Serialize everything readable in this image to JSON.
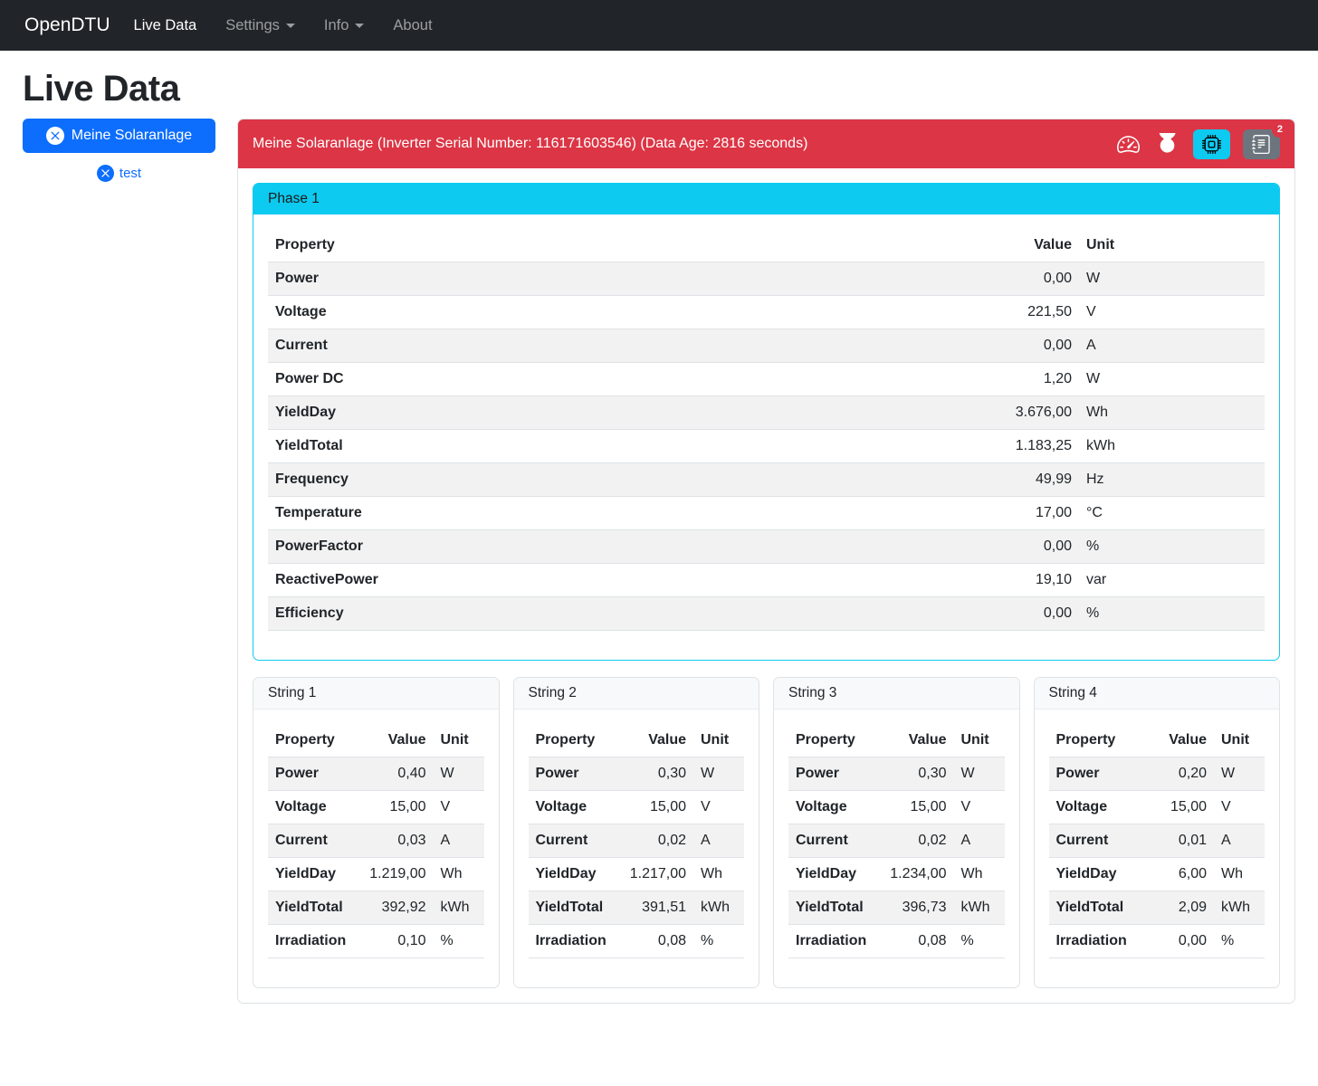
{
  "navbar": {
    "brand": "OpenDTU",
    "items": [
      {
        "label": "Live Data",
        "active": true,
        "dropdown": false
      },
      {
        "label": "Settings",
        "active": false,
        "dropdown": true
      },
      {
        "label": "Info",
        "active": false,
        "dropdown": true
      },
      {
        "label": "About",
        "active": false,
        "dropdown": false
      }
    ]
  },
  "page": {
    "title": "Live Data"
  },
  "sidebar": {
    "inverter_button_label": "Meine Solaranlage",
    "test_link_label": "test"
  },
  "inverter": {
    "header": "Meine Solaranlage (Inverter Serial Number: 116171603546) (Data Age: 2816 seconds)",
    "event_count_badge": "2",
    "icons": {
      "speedometer": "limit-settings gauge icon",
      "power": "power on/off icon",
      "cpu": "inverter-info chip icon (active, cyan)",
      "journal": "event-log journal icon (gray, badge 2)",
      "x_circle": "x in filled circle"
    },
    "phase": {
      "title": "Phase 1",
      "columns": [
        "Property",
        "Value",
        "Unit"
      ],
      "rows": [
        [
          "Power",
          "0,00",
          "W"
        ],
        [
          "Voltage",
          "221,50",
          "V"
        ],
        [
          "Current",
          "0,00",
          "A"
        ],
        [
          "Power DC",
          "1,20",
          "W"
        ],
        [
          "YieldDay",
          "3.676,00",
          "Wh"
        ],
        [
          "YieldTotal",
          "1.183,25",
          "kWh"
        ],
        [
          "Frequency",
          "49,99",
          "Hz"
        ],
        [
          "Temperature",
          "17,00",
          "°C"
        ],
        [
          "PowerFactor",
          "0,00",
          "%"
        ],
        [
          "ReactivePower",
          "19,10",
          "var"
        ],
        [
          "Efficiency",
          "0,00",
          "%"
        ]
      ]
    },
    "strings": [
      {
        "title": "String 1",
        "columns": [
          "Property",
          "Value",
          "Unit"
        ],
        "rows": [
          [
            "Power",
            "0,40",
            "W"
          ],
          [
            "Voltage",
            "15,00",
            "V"
          ],
          [
            "Current",
            "0,03",
            "A"
          ],
          [
            "YieldDay",
            "1.219,00",
            "Wh"
          ],
          [
            "YieldTotal",
            "392,92",
            "kWh"
          ],
          [
            "Irradiation",
            "0,10",
            "%"
          ]
        ]
      },
      {
        "title": "String 2",
        "columns": [
          "Property",
          "Value",
          "Unit"
        ],
        "rows": [
          [
            "Power",
            "0,30",
            "W"
          ],
          [
            "Voltage",
            "15,00",
            "V"
          ],
          [
            "Current",
            "0,02",
            "A"
          ],
          [
            "YieldDay",
            "1.217,00",
            "Wh"
          ],
          [
            "YieldTotal",
            "391,51",
            "kWh"
          ],
          [
            "Irradiation",
            "0,08",
            "%"
          ]
        ]
      },
      {
        "title": "String 3",
        "columns": [
          "Property",
          "Value",
          "Unit"
        ],
        "rows": [
          [
            "Power",
            "0,30",
            "W"
          ],
          [
            "Voltage",
            "15,00",
            "V"
          ],
          [
            "Current",
            "0,02",
            "A"
          ],
          [
            "YieldDay",
            "1.234,00",
            "Wh"
          ],
          [
            "YieldTotal",
            "396,73",
            "kWh"
          ],
          [
            "Irradiation",
            "0,08",
            "%"
          ]
        ]
      },
      {
        "title": "String 4",
        "columns": [
          "Property",
          "Value",
          "Unit"
        ],
        "rows": [
          [
            "Power",
            "0,20",
            "W"
          ],
          [
            "Voltage",
            "15,00",
            "V"
          ],
          [
            "Current",
            "0,01",
            "A"
          ],
          [
            "YieldDay",
            "6,00",
            "Wh"
          ],
          [
            "YieldTotal",
            "2,09",
            "kWh"
          ],
          [
            "Irradiation",
            "0,00",
            "%"
          ]
        ]
      }
    ]
  },
  "colors": {
    "navbar_bg": "#212529",
    "danger_red": "#dc3545",
    "info_cyan": "#0dcaf0",
    "primary_blue": "#0d6efd",
    "secondary_gray": "#6c757d",
    "stripe_gray": "#f2f2f2"
  }
}
